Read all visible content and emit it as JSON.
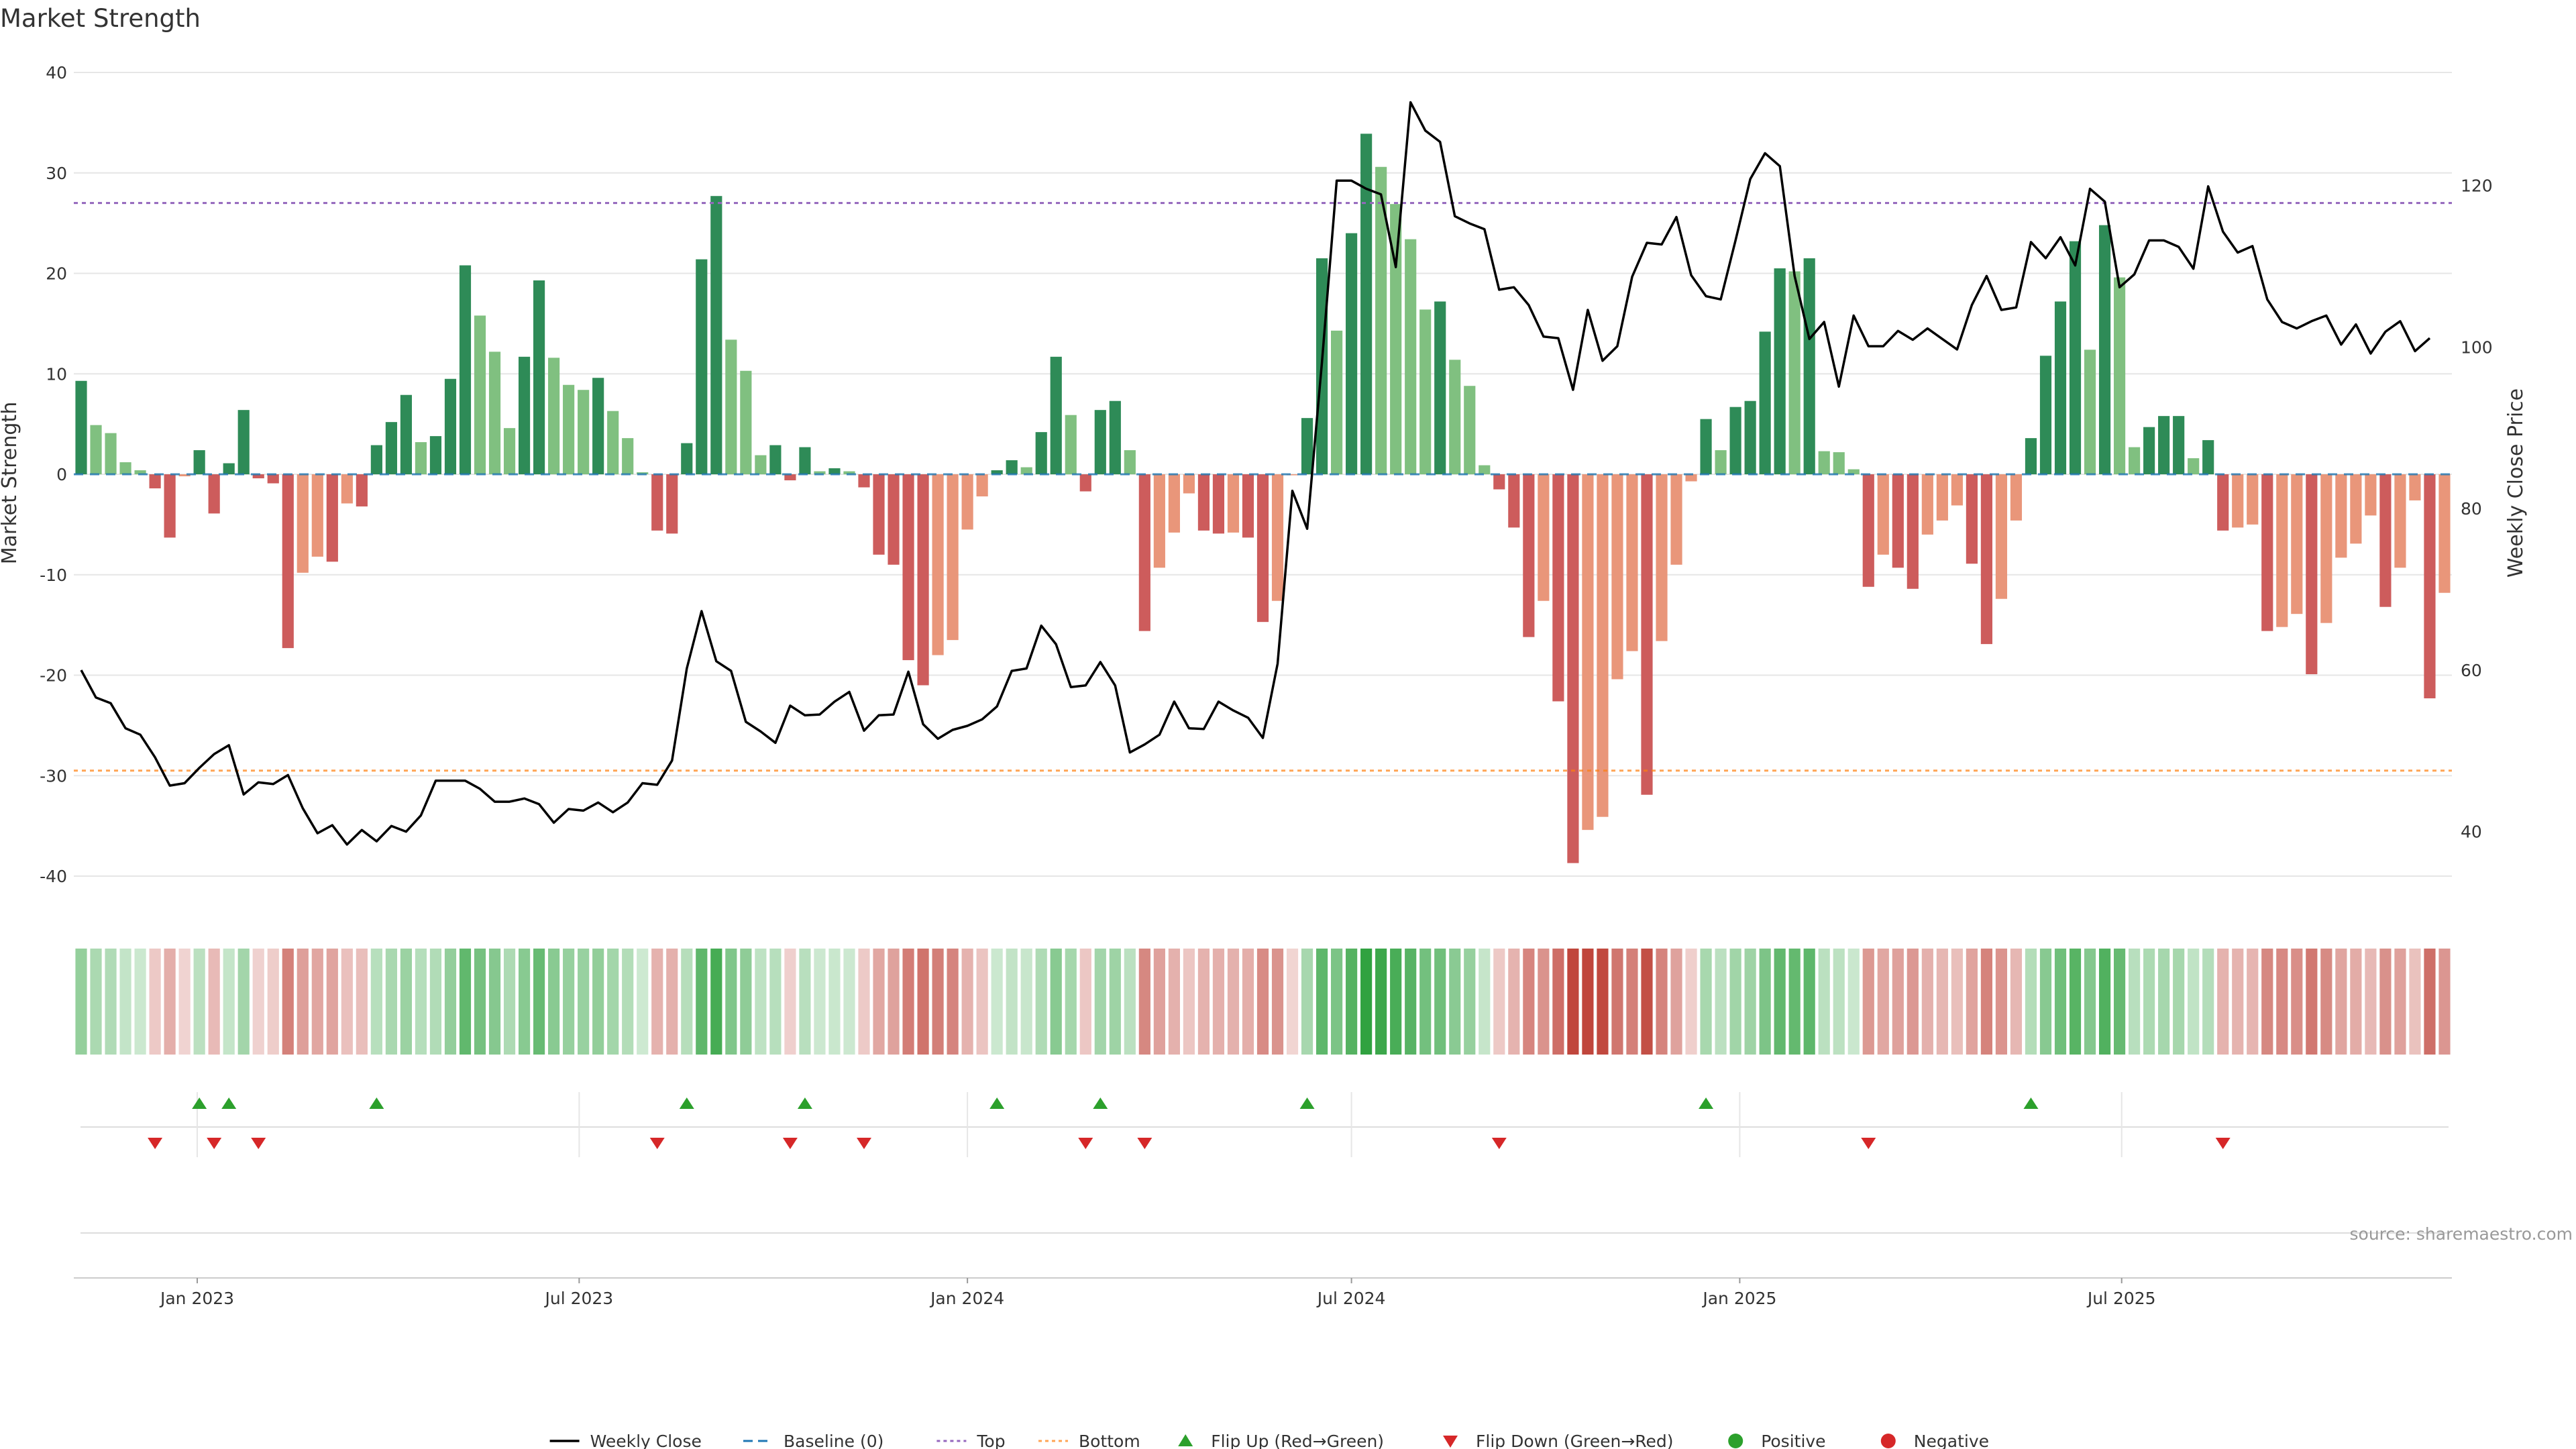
{
  "title": "Market Strength",
  "source": "source: sharemaestro.com",
  "colors": {
    "strong_green": "#2e8b57",
    "light_green": "#80c080",
    "strong_red": "#cd5c5c",
    "light_red": "#e9967a",
    "line": "#000000",
    "baseline": "#1f77b4",
    "top": "#9467bd",
    "bottom": "#ff7f0e",
    "flip_up": "#2ca02c",
    "flip_down": "#d62728",
    "positive": "#2ca02c",
    "negative": "#d62728"
  },
  "chart_data": {
    "type": "bar",
    "title": "Market Strength",
    "x_start": "2022-11-07",
    "x_interval_days": 7,
    "x_ticks": [
      "Jan 2023",
      "Jul 2023",
      "Jan 2024",
      "Jul 2024",
      "Jan 2025",
      "Jul 2025"
    ],
    "left_axis": {
      "label": "Market Strength",
      "ylim": [
        -42,
        40
      ],
      "ticks": [
        40,
        30,
        20,
        10,
        0,
        -10,
        -20,
        -30,
        -40
      ]
    },
    "right_axis": {
      "label": "Weekly Close Price",
      "ylim": [
        32,
        134
      ],
      "ticks": [
        120,
        100,
        80,
        60,
        40
      ]
    },
    "top_level": 27,
    "bottom_level": -29.5,
    "grid": true,
    "strength": [
      9.3,
      4.9,
      4.1,
      1.2,
      0.4,
      -1.4,
      -6.3,
      -0.2,
      2.4,
      -3.9,
      1.1,
      6.4,
      -0.4,
      -0.9,
      -17.3,
      -9.8,
      -8.2,
      -8.7,
      -2.9,
      -3.2,
      2.9,
      5.2,
      7.9,
      3.2,
      3.8,
      9.5,
      20.8,
      15.8,
      12.2,
      4.6,
      11.7,
      19.3,
      11.6,
      8.9,
      8.4,
      9.6,
      6.3,
      3.6,
      0.2,
      -5.6,
      -5.9,
      3.1,
      21.4,
      27.7,
      13.4,
      10.3,
      1.9,
      2.9,
      -0.6,
      2.7,
      0.3,
      0.6,
      0.3,
      -1.3,
      -8.0,
      -9.0,
      -18.5,
      -21.0,
      -18.0,
      -16.5,
      -5.5,
      -2.2,
      0.4,
      1.4,
      0.7,
      4.2,
      11.7,
      5.9,
      -1.7,
      6.4,
      7.3,
      2.4,
      -15.6,
      -9.3,
      -5.8,
      -1.9,
      -5.6,
      -5.9,
      -5.8,
      -6.3,
      -14.7,
      -12.6,
      -0.1,
      5.6,
      21.5,
      14.3,
      24.0,
      33.9,
      30.6,
      26.9,
      23.4,
      16.4,
      17.2,
      11.4,
      8.8,
      0.9,
      -1.5,
      -5.3,
      -16.2,
      -12.6,
      -22.6,
      -38.7,
      -35.4,
      -34.1,
      -20.4,
      -17.6,
      -31.9,
      -16.6,
      -9.0,
      -0.7,
      5.5,
      2.4,
      6.7,
      7.3,
      14.2,
      20.5,
      20.2,
      21.5,
      2.3,
      2.2,
      0.5,
      -11.2,
      -8.0,
      -9.3,
      -11.4,
      -6.0,
      -4.6,
      -3.1,
      -8.9,
      -16.9,
      -12.4,
      -4.6,
      3.6,
      11.8,
      17.2,
      23.2,
      12.4,
      24.8,
      19.6,
      2.7,
      4.7,
      5.8,
      5.8,
      1.6,
      3.4,
      -5.6,
      -5.3,
      -5.0,
      -15.6,
      -15.2,
      -13.9,
      -19.9,
      -14.8,
      -8.3,
      -6.9,
      -4.1,
      -13.2,
      -9.3,
      -2.6,
      -22.3,
      -11.8
    ],
    "weekly_close": [
      60.0,
      56.6,
      55.9,
      52.8,
      52.0,
      49.2,
      45.7,
      46.0,
      47.9,
      49.6,
      50.7,
      44.6,
      46.1,
      45.9,
      47.0,
      42.9,
      39.8,
      40.8,
      38.4,
      40.2,
      38.8,
      40.7,
      40.0,
      42.0,
      46.3,
      46.3,
      46.3,
      45.3,
      43.7,
      43.7,
      44.1,
      43.4,
      41.1,
      42.8,
      42.6,
      43.6,
      42.4,
      43.6,
      46.0,
      45.8,
      48.8,
      60.2,
      67.3,
      61.1,
      59.9,
      53.6,
      52.4,
      51.0,
      55.6,
      54.4,
      54.5,
      56.1,
      57.3,
      52.5,
      54.4,
      54.5,
      59.8,
      53.3,
      51.5,
      52.6,
      53.1,
      53.9,
      55.5,
      59.9,
      60.2,
      65.5,
      63.2,
      57.9,
      58.1,
      61.0,
      58.1,
      49.8,
      50.8,
      52.0,
      56.1,
      52.8,
      52.7,
      56.1,
      55.0,
      54.1,
      51.6,
      60.8,
      82.2,
      77.5,
      98.1,
      120.6,
      120.6,
      119.6,
      118.9,
      109.9,
      130.3,
      126.8,
      125.4,
      116.2,
      115.3,
      114.6,
      107.1,
      107.4,
      105.2,
      101.3,
      101.1,
      94.7,
      104.6,
      98.3,
      100.1,
      108.7,
      112.9,
      112.7,
      116.1,
      108.9,
      106.3,
      105.9,
      113.2,
      120.8,
      124.0,
      122.4,
      108.8,
      101.0,
      103.1,
      95.1,
      103.9,
      100.1,
      100.1,
      102.0,
      100.9,
      102.3,
      101.0,
      99.7,
      105.2,
      108.8,
      104.6,
      104.9,
      113.0,
      111.0,
      113.6,
      110.1,
      119.6,
      118.0,
      107.4,
      109.0,
      113.2,
      113.2,
      112.4,
      109.7,
      119.9,
      114.3,
      111.7,
      112.5,
      105.9,
      103.1,
      102.3,
      103.2,
      103.9,
      100.3,
      102.8,
      99.2,
      101.9,
      103.2,
      99.5,
      101.1
    ]
  },
  "legend": {
    "items": [
      {
        "label": "Weekly Close",
        "type": "line"
      },
      {
        "label": "Baseline (0)",
        "type": "dash"
      },
      {
        "label": "Top",
        "type": "dot"
      },
      {
        "label": "Bottom",
        "type": "dot2"
      },
      {
        "label": "Flip Up (Red→Green)",
        "type": "tri-up"
      },
      {
        "label": "Flip Down (Green→Red)",
        "type": "tri-down"
      },
      {
        "label": "Positive",
        "type": "dot-green"
      },
      {
        "label": "Negative",
        "type": "dot-red"
      }
    ]
  }
}
